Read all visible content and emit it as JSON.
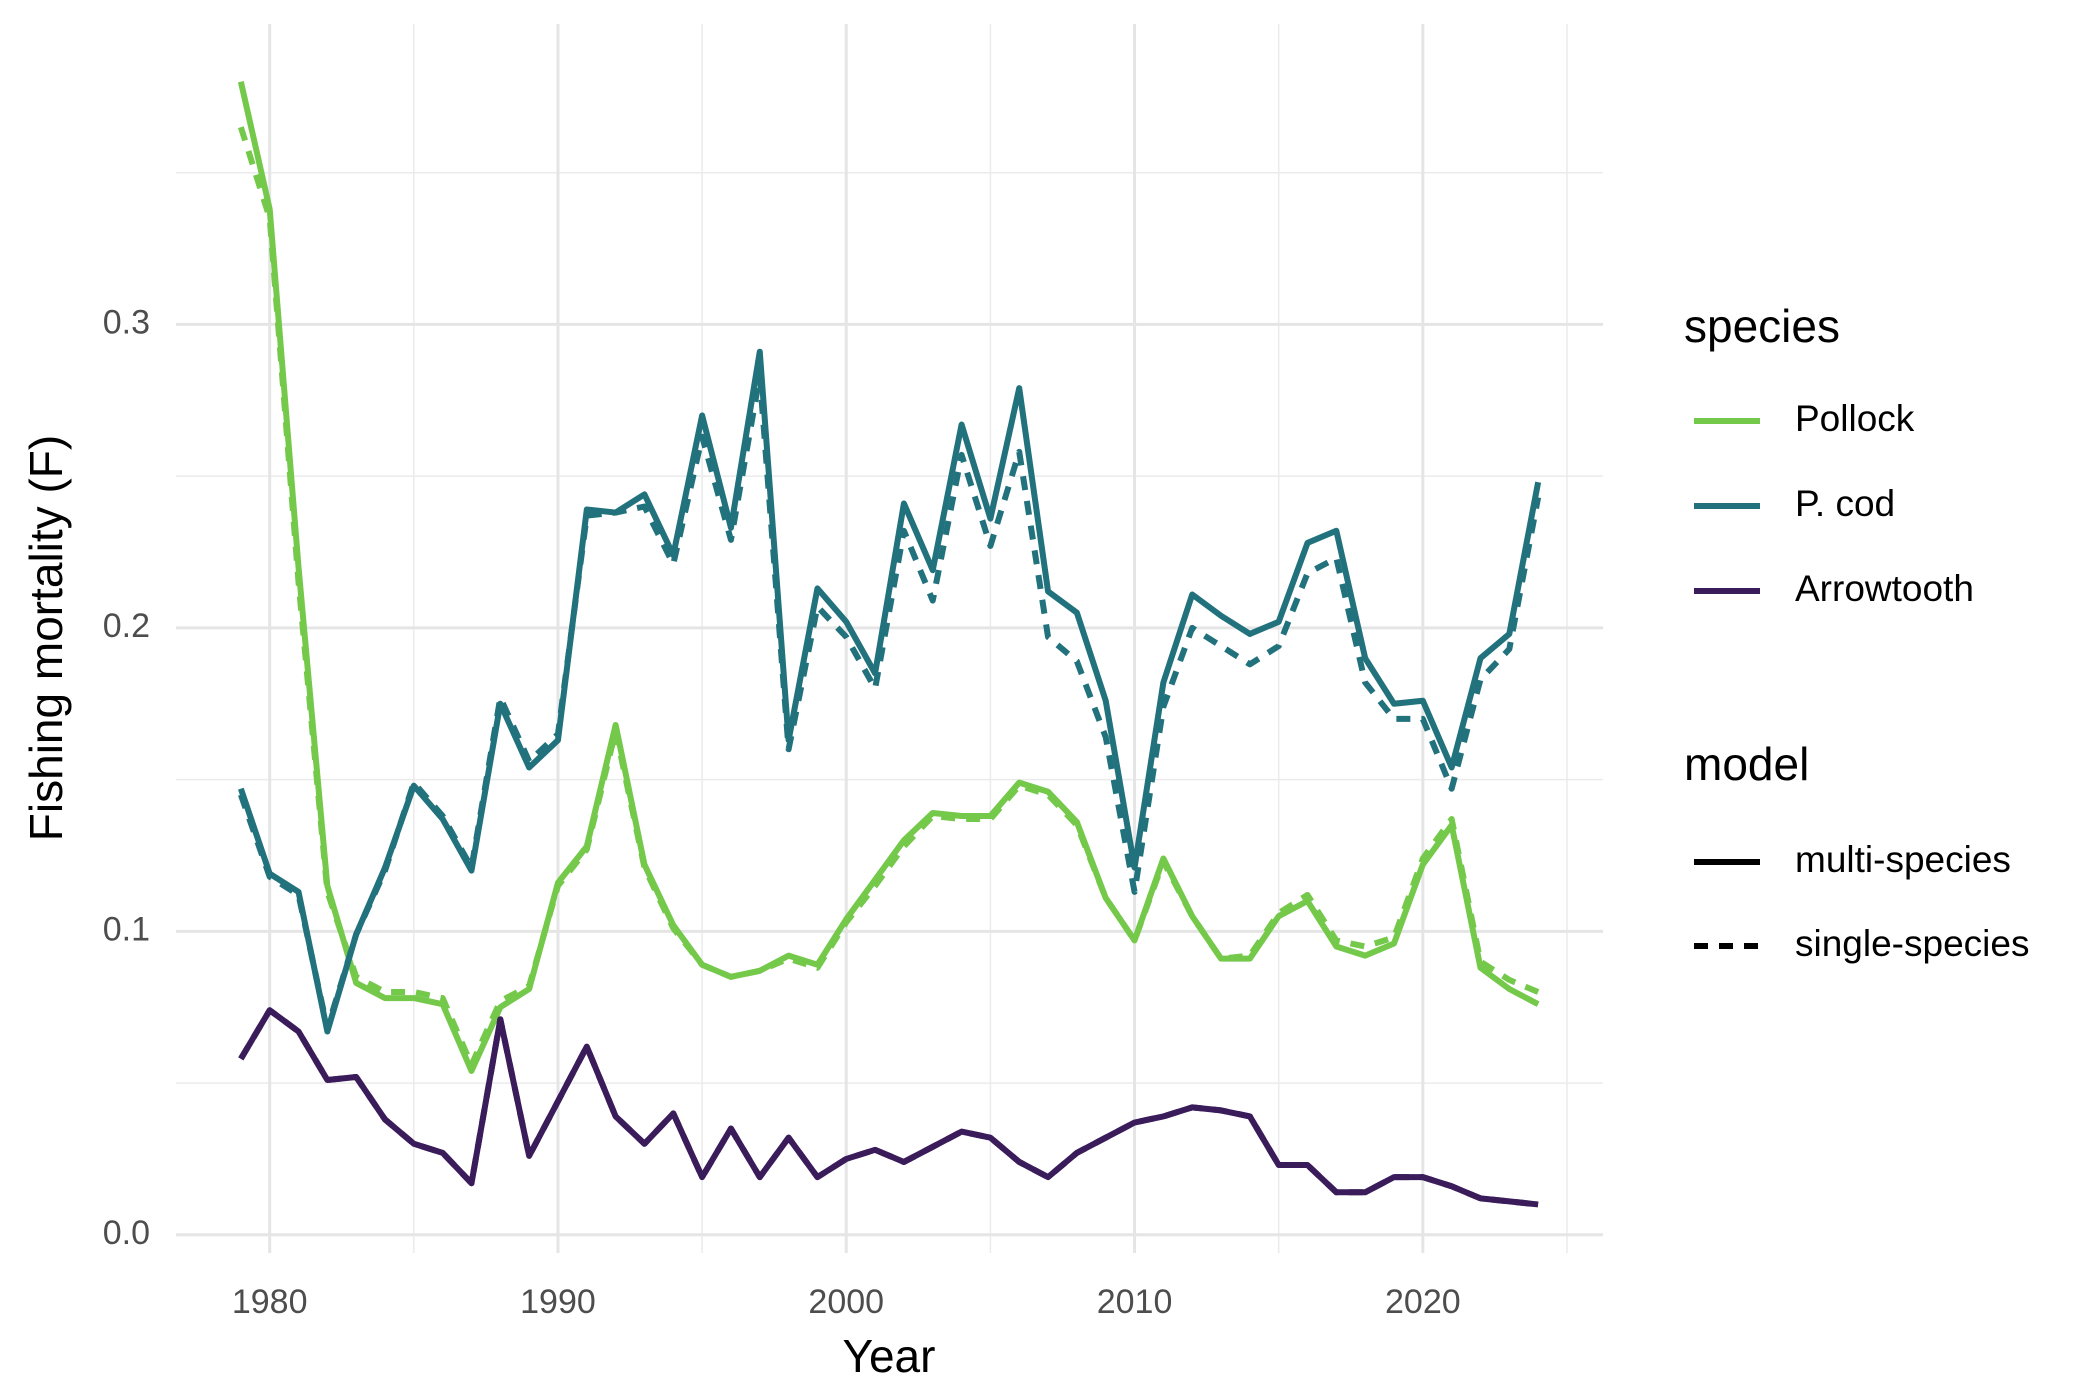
{
  "chart_data": {
    "type": "line",
    "x_label": "Year",
    "y_label": "Fishing mortality (F)",
    "color_legend_title": "species",
    "linetype_legend_title": "model",
    "grid": true,
    "minor_grid": true,
    "xlim": [
      1976.75,
      2026.25
    ],
    "xticks": [
      1980,
      1990,
      2000,
      2010,
      2020
    ],
    "ylim": [
      -0.006,
      0.399
    ],
    "yticks": [
      {
        "value": 0,
        "label": "0.0"
      },
      0.1,
      0.2,
      0.3
    ],
    "x": [
      1979,
      1980,
      1981,
      1982,
      1983,
      1984,
      1985,
      1986,
      1987,
      1988,
      1989,
      1990,
      1991,
      1992,
      1993,
      1994,
      1995,
      1996,
      1997,
      1998,
      1999,
      2000,
      2001,
      2002,
      2003,
      2004,
      2005,
      2006,
      2007,
      2008,
      2009,
      2010,
      2011,
      2012,
      2013,
      2014,
      2015,
      2016,
      2017,
      2018,
      2019,
      2020,
      2021,
      2022,
      2023,
      2024
    ],
    "series": [
      {
        "name": "Pollock",
        "model": "multi-species",
        "color": "#74c94a",
        "linetype": "solid",
        "values": [
          0.38,
          0.338,
          0.22,
          0.115,
          0.083,
          0.078,
          0.078,
          0.076,
          0.054,
          0.075,
          0.081,
          0.116,
          0.128,
          0.168,
          0.122,
          0.102,
          0.089,
          0.085,
          0.087,
          0.092,
          0.089,
          0.104,
          0.117,
          0.13,
          0.139,
          0.138,
          0.138,
          0.149,
          0.146,
          0.136,
          0.111,
          0.097,
          0.124,
          0.105,
          0.091,
          0.091,
          0.105,
          0.11,
          0.095,
          0.092,
          0.096,
          0.122,
          0.135,
          0.088,
          0.081,
          0.076
        ]
      },
      {
        "name": "Pollock",
        "model": "single-species",
        "color": "#74c94a",
        "linetype": "dashed",
        "values": [
          0.365,
          0.335,
          0.215,
          0.113,
          0.085,
          0.08,
          0.08,
          0.078,
          0.056,
          0.077,
          0.082,
          0.115,
          0.127,
          0.166,
          0.121,
          0.101,
          0.089,
          0.085,
          0.087,
          0.091,
          0.088,
          0.103,
          0.115,
          0.128,
          0.138,
          0.137,
          0.137,
          0.148,
          0.145,
          0.135,
          0.111,
          0.097,
          0.123,
          0.105,
          0.091,
          0.092,
          0.106,
          0.112,
          0.097,
          0.095,
          0.098,
          0.124,
          0.137,
          0.09,
          0.084,
          0.08
        ]
      },
      {
        "name": "P. cod",
        "model": "multi-species",
        "color": "#22727d",
        "linetype": "solid",
        "values": [
          0.147,
          0.119,
          0.113,
          0.067,
          0.099,
          0.121,
          0.148,
          0.137,
          0.12,
          0.175,
          0.154,
          0.163,
          0.239,
          0.238,
          0.244,
          0.224,
          0.27,
          0.233,
          0.291,
          0.163,
          0.213,
          0.202,
          0.185,
          0.241,
          0.219,
          0.267,
          0.236,
          0.279,
          0.212,
          0.205,
          0.176,
          0.121,
          0.182,
          0.211,
          0.204,
          0.198,
          0.202,
          0.228,
          0.232,
          0.19,
          0.175,
          0.176,
          0.154,
          0.19,
          0.198,
          0.248
        ]
      },
      {
        "name": "P. cod",
        "model": "single-species",
        "color": "#22727d",
        "linetype": "dashed",
        "values": [
          0.145,
          0.118,
          0.112,
          0.068,
          0.099,
          0.12,
          0.149,
          0.138,
          0.121,
          0.177,
          0.156,
          0.165,
          0.237,
          0.238,
          0.24,
          0.221,
          0.263,
          0.229,
          0.283,
          0.16,
          0.207,
          0.197,
          0.18,
          0.232,
          0.209,
          0.257,
          0.227,
          0.258,
          0.197,
          0.189,
          0.164,
          0.113,
          0.174,
          0.2,
          0.194,
          0.188,
          0.194,
          0.218,
          0.223,
          0.182,
          0.17,
          0.17,
          0.147,
          0.183,
          0.193,
          0.243
        ]
      },
      {
        "name": "Arrowtooth",
        "model": "multi-species",
        "color": "#3b1c5b",
        "linetype": "solid",
        "values": [
          0.058,
          0.074,
          0.067,
          0.051,
          0.052,
          0.038,
          0.03,
          0.027,
          0.017,
          0.071,
          0.026,
          0.044,
          0.062,
          0.039,
          0.03,
          0.04,
          0.019,
          0.035,
          0.019,
          0.032,
          0.019,
          0.025,
          0.028,
          0.024,
          0.029,
          0.034,
          0.032,
          0.024,
          0.019,
          0.027,
          0.032,
          0.037,
          0.039,
          0.042,
          0.041,
          0.039,
          0.023,
          0.023,
          0.014,
          0.014,
          0.019,
          0.019,
          0.016,
          0.012,
          0.011,
          0.01
        ]
      },
      {
        "name": "Arrowtooth",
        "model": "single-species",
        "color": "#3b1c5b",
        "linetype": "dashed",
        "values": [
          0.058,
          0.074,
          0.067,
          0.051,
          0.052,
          0.038,
          0.03,
          0.027,
          0.017,
          0.071,
          0.026,
          0.044,
          0.062,
          0.039,
          0.03,
          0.04,
          0.019,
          0.035,
          0.019,
          0.032,
          0.019,
          0.025,
          0.028,
          0.024,
          0.029,
          0.034,
          0.032,
          0.024,
          0.019,
          0.027,
          0.032,
          0.037,
          0.039,
          0.042,
          0.041,
          0.039,
          0.023,
          0.023,
          0.014,
          0.014,
          0.019,
          0.019,
          0.016,
          0.012,
          0.011,
          0.01
        ]
      }
    ]
  }
}
